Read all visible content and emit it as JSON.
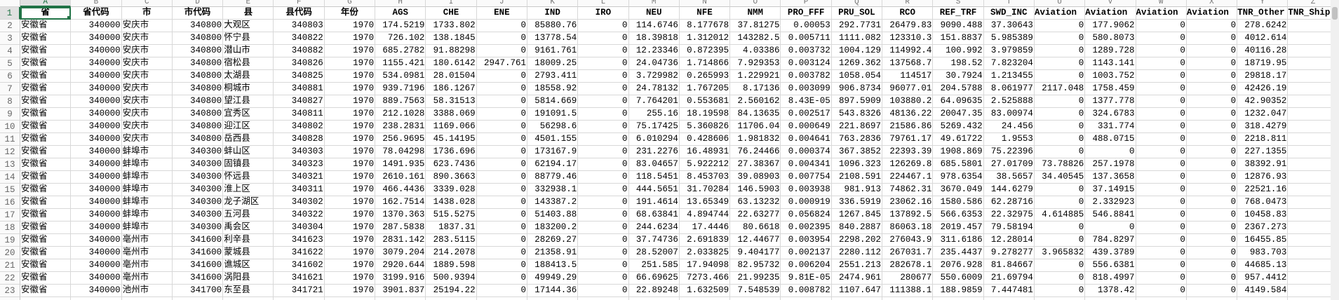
{
  "sheet": {
    "active_cell": "A1",
    "accent_color": "#217346",
    "columns": [
      {
        "letter": "A",
        "header": "省"
      },
      {
        "letter": "B",
        "header": "省代码"
      },
      {
        "letter": "C",
        "header": "市"
      },
      {
        "letter": "D",
        "header": "市代码"
      },
      {
        "letter": "E",
        "header": "县"
      },
      {
        "letter": "F",
        "header": "县代码"
      },
      {
        "letter": "G",
        "header": "年份"
      },
      {
        "letter": "H",
        "header": "AGS"
      },
      {
        "letter": "I",
        "header": "CHE"
      },
      {
        "letter": "J",
        "header": "ENE"
      },
      {
        "letter": "K",
        "header": "IND"
      },
      {
        "letter": "L",
        "header": "IRO"
      },
      {
        "letter": "M",
        "header": "NEU"
      },
      {
        "letter": "N",
        "header": "NFE"
      },
      {
        "letter": "O",
        "header": "NMM"
      },
      {
        "letter": "P",
        "header": "PRO_FFF"
      },
      {
        "letter": "Q",
        "header": "PRU_SOL"
      },
      {
        "letter": "R",
        "header": "RCO"
      },
      {
        "letter": "S",
        "header": "REF_TRF"
      },
      {
        "letter": "T",
        "header": "SWD_INC"
      },
      {
        "letter": "U",
        "header": "Aviation"
      },
      {
        "letter": "V",
        "header": "Aviation"
      },
      {
        "letter": "W",
        "header": "Aviation"
      },
      {
        "letter": "X",
        "header": "Aviation"
      },
      {
        "letter": "Y",
        "header": "TNR_Other"
      },
      {
        "letter": "Z",
        "header": "TNR_Ship"
      }
    ],
    "rows": [
      [
        "安徽省",
        "340000",
        "安庆市",
        "340800",
        "大观区",
        "340803",
        "1970",
        "174.5219",
        "1733.802",
        "0",
        "85880.76",
        "0",
        "114.6746",
        "8.177678",
        "37.81275",
        "0.00053",
        "292.7731",
        "26479.83",
        "9090.488",
        "37.30643",
        "0",
        "177.9062",
        "0",
        "0",
        "278.6242",
        "0"
      ],
      [
        "安徽省",
        "340000",
        "安庆市",
        "340800",
        "怀宁县",
        "340822",
        "1970",
        "726.102",
        "138.1845",
        "0",
        "13778.54",
        "0",
        "18.39818",
        "1.312012",
        "143282.5",
        "0.005711",
        "1111.082",
        "123310.3",
        "151.8837",
        "5.985389",
        "0",
        "580.8073",
        "0",
        "0",
        "4012.614",
        "0"
      ],
      [
        "安徽省",
        "340000",
        "安庆市",
        "340800",
        "潜山市",
        "340882",
        "1970",
        "685.2782",
        "91.88298",
        "0",
        "9161.761",
        "0",
        "12.23346",
        "0.872395",
        "4.03386",
        "0.003732",
        "1004.129",
        "114992.4",
        "100.992",
        "3.979859",
        "0",
        "1289.728",
        "0",
        "0",
        "40116.28",
        "0"
      ],
      [
        "安徽省",
        "340000",
        "安庆市",
        "340800",
        "宿松县",
        "340826",
        "1970",
        "1155.421",
        "180.6142",
        "2947.761",
        "18009.25",
        "0",
        "24.04736",
        "1.714866",
        "7.929353",
        "0.003124",
        "1269.362",
        "137568.7",
        "198.52",
        "7.823204",
        "0",
        "1143.141",
        "0",
        "0",
        "18719.95",
        "0"
      ],
      [
        "安徽省",
        "340000",
        "安庆市",
        "340800",
        "太湖县",
        "340825",
        "1970",
        "534.0981",
        "28.01504",
        "0",
        "2793.411",
        "0",
        "3.729982",
        "0.265993",
        "1.229921",
        "0.003782",
        "1058.054",
        "114517",
        "30.7924",
        "1.213455",
        "0",
        "1003.752",
        "0",
        "0",
        "29818.17",
        "0"
      ],
      [
        "安徽省",
        "340000",
        "安庆市",
        "340800",
        "桐城市",
        "340881",
        "1970",
        "939.7196",
        "186.1267",
        "0",
        "18558.92",
        "0",
        "24.78132",
        "1.767205",
        "8.17136",
        "0.003099",
        "906.8734",
        "96077.01",
        "204.5788",
        "8.061977",
        "2117.048",
        "1758.459",
        "0",
        "0",
        "42426.19",
        "0"
      ],
      [
        "安徽省",
        "340000",
        "安庆市",
        "340800",
        "望江县",
        "340827",
        "1970",
        "889.7563",
        "58.31513",
        "0",
        "5814.669",
        "0",
        "7.764201",
        "0.553681",
        "2.560162",
        "8.43E-05",
        "897.5909",
        "103880.2",
        "64.09635",
        "2.525888",
        "0",
        "1377.778",
        "0",
        "0",
        "42.90352",
        "0"
      ],
      [
        "安徽省",
        "340000",
        "安庆市",
        "340800",
        "宜秀区",
        "340811",
        "1970",
        "212.1028",
        "3388.069",
        "0",
        "191091.5",
        "0",
        "255.16",
        "18.19598",
        "84.13635",
        "0.002517",
        "543.8326",
        "48136.22",
        "20047.35",
        "83.00974",
        "0",
        "324.6783",
        "0",
        "0",
        "1232.047",
        "0"
      ],
      [
        "安徽省",
        "340000",
        "安庆市",
        "340800",
        "迎江区",
        "340802",
        "1970",
        "238.2831",
        "1169.066",
        "0",
        "56298.6",
        "0",
        "75.17425",
        "5.360826",
        "11706.04",
        "0.000649",
        "221.8697",
        "21586.86",
        "5269.432",
        "24.456",
        "0",
        "331.774",
        "0",
        "0",
        "318.4279",
        "0"
      ],
      [
        "安徽省",
        "340000",
        "安庆市",
        "340800",
        "岳西县",
        "340828",
        "1970",
        "256.9695",
        "45.14195",
        "0",
        "4501.155",
        "0",
        "6.010294",
        "0.428606",
        "1.981832",
        "0.004641",
        "763.2836",
        "79761.17",
        "49.61722",
        "1.9553",
        "0",
        "488.0715",
        "0",
        "0",
        "2218.811",
        "0"
      ],
      [
        "安徽省",
        "340000",
        "蚌埠市",
        "340300",
        "蚌山区",
        "340303",
        "1970",
        "78.04298",
        "1736.696",
        "0",
        "173167.9",
        "0",
        "231.2276",
        "16.48931",
        "76.24466",
        "0.000374",
        "367.3852",
        "22393.39",
        "1908.869",
        "75.22396",
        "0",
        "0",
        "0",
        "0",
        "227.1355",
        "0"
      ],
      [
        "安徽省",
        "340000",
        "蚌埠市",
        "340300",
        "固镇县",
        "340323",
        "1970",
        "1491.935",
        "623.7436",
        "0",
        "62194.17",
        "0",
        "83.04657",
        "5.922212",
        "27.38367",
        "0.004341",
        "1096.323",
        "126269.8",
        "685.5801",
        "27.01709",
        "73.78826",
        "257.1978",
        "0",
        "0",
        "38392.91",
        "0"
      ],
      [
        "安徽省",
        "340000",
        "蚌埠市",
        "340300",
        "怀远县",
        "340321",
        "1970",
        "2610.161",
        "890.3663",
        "0",
        "88779.46",
        "0",
        "118.5451",
        "8.453703",
        "39.08903",
        "0.007754",
        "2108.591",
        "224467.1",
        "978.6354",
        "38.5657",
        "34.40545",
        "137.3658",
        "0",
        "0",
        "12876.93",
        "0"
      ],
      [
        "安徽省",
        "340000",
        "蚌埠市",
        "340300",
        "淮上区",
        "340311",
        "1970",
        "466.4436",
        "3339.028",
        "0",
        "332938.1",
        "0",
        "444.5651",
        "31.70284",
        "146.5903",
        "0.003938",
        "981.913",
        "74862.31",
        "3670.049",
        "144.6279",
        "0",
        "37.14915",
        "0",
        "0",
        "22521.16",
        "0"
      ],
      [
        "安徽省",
        "340000",
        "蚌埠市",
        "340300",
        "龙子湖区",
        "340302",
        "1970",
        "162.7514",
        "1438.028",
        "0",
        "143387.2",
        "0",
        "191.4614",
        "13.65349",
        "63.13232",
        "0.000919",
        "336.5919",
        "23062.16",
        "1580.586",
        "62.28716",
        "0",
        "2.332923",
        "0",
        "0",
        "768.0473",
        "0"
      ],
      [
        "安徽省",
        "340000",
        "蚌埠市",
        "340300",
        "五河县",
        "340322",
        "1970",
        "1370.363",
        "515.5275",
        "0",
        "51403.88",
        "0",
        "68.63841",
        "4.894744",
        "22.63277",
        "0.056824",
        "1267.845",
        "137892.5",
        "566.6353",
        "22.32975",
        "4.614885",
        "546.8841",
        "0",
        "0",
        "10458.83",
        "0"
      ],
      [
        "安徽省",
        "340000",
        "蚌埠市",
        "340300",
        "禹会区",
        "340304",
        "1970",
        "287.5838",
        "1837.31",
        "0",
        "183200.2",
        "0",
        "244.6234",
        "17.4446",
        "80.6618",
        "0.002395",
        "840.2887",
        "86063.18",
        "2019.457",
        "79.58194",
        "0",
        "0",
        "0",
        "0",
        "2367.273",
        "0"
      ],
      [
        "安徽省",
        "340000",
        "亳州市",
        "341600",
        "利辛县",
        "341623",
        "1970",
        "2831.142",
        "283.5115",
        "0",
        "28269.27",
        "0",
        "37.74736",
        "2.691839",
        "12.44677",
        "0.003954",
        "2298.202",
        "276043.9",
        "311.6186",
        "12.28014",
        "0",
        "784.8297",
        "0",
        "0",
        "16455.85",
        "0"
      ],
      [
        "安徽省",
        "340000",
        "亳州市",
        "341600",
        "蒙城县",
        "341622",
        "1970",
        "3079.204",
        "214.2078",
        "0",
        "21358.91",
        "0",
        "28.52007",
        "2.033825",
        "9.404177",
        "0.002137",
        "2280.112",
        "267031.7",
        "235.4437",
        "9.278277",
        "3.965832",
        "439.3789",
        "0",
        "0",
        "983.703",
        "0"
      ],
      [
        "安徽省",
        "340000",
        "亳州市",
        "341600",
        "谯城区",
        "341602",
        "1970",
        "2920.644",
        "1889.598",
        "0",
        "188413.5",
        "0",
        "251.585",
        "17.94098",
        "82.95732",
        "0.006204",
        "2551.213",
        "282678.1",
        "2076.928",
        "81.84667",
        "0",
        "556.6381",
        "0",
        "0",
        "44685.13",
        "0"
      ],
      [
        "安徽省",
        "340000",
        "亳州市",
        "341600",
        "涡阳县",
        "341621",
        "1970",
        "3199.916",
        "500.9394",
        "0",
        "49949.29",
        "0",
        "66.69625",
        "7273.466",
        "21.99235",
        "9.81E-05",
        "2474.961",
        "280677",
        "550.6009",
        "21.69794",
        "0",
        "818.4997",
        "0",
        "0",
        "957.4412",
        "0"
      ],
      [
        "安徽省",
        "340000",
        "池州市",
        "341700",
        "东至县",
        "341721",
        "1970",
        "3901.837",
        "25194.22",
        "0",
        "17144.36",
        "0",
        "22.89248",
        "1.632509",
        "7.548539",
        "0.008782",
        "1107.647",
        "111388.1",
        "188.9859",
        "7.447481",
        "0",
        "1378.42",
        "0",
        "0",
        "4149.584",
        "0"
      ]
    ]
  }
}
